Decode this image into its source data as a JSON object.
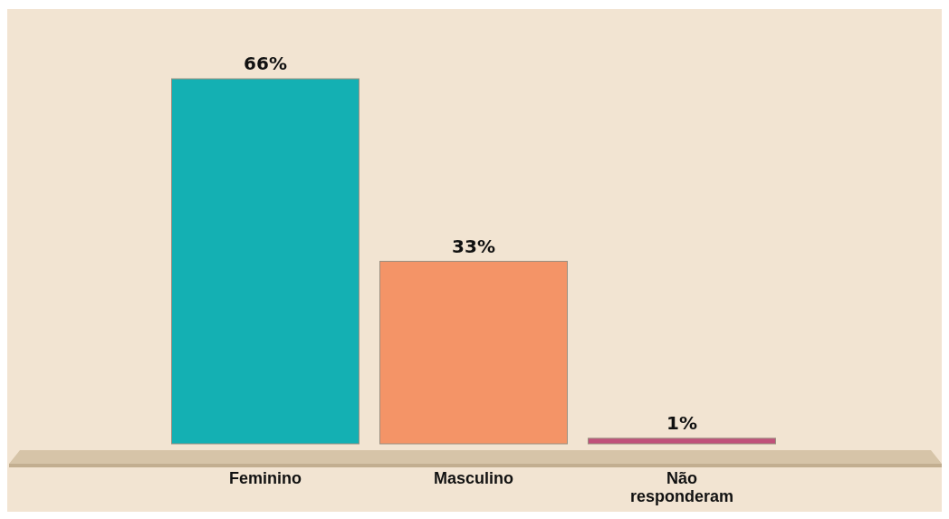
{
  "chart_data": {
    "type": "bar",
    "categories": [
      "Feminino",
      "Masculino",
      "Não responderam"
    ],
    "values": [
      66,
      33,
      1
    ],
    "colors": [
      "#14b0b3",
      "#f49467",
      "#c0507a"
    ],
    "value_labels": [
      "66%",
      "33%",
      "1%"
    ]
  }
}
